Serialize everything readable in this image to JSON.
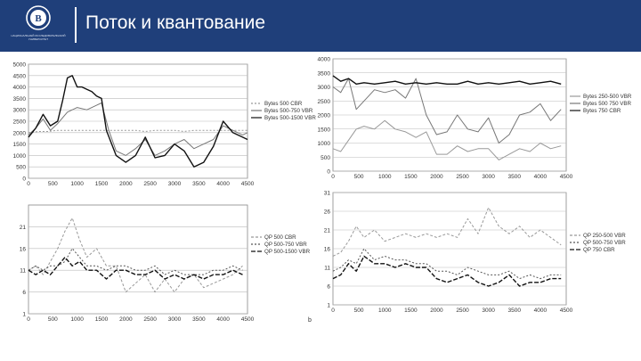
{
  "header": {
    "title": "Поток и квантование",
    "logo_caption": "НАЦИОНАЛЬНЫЙ ИССЛЕДОВАТЕЛЬСКИЙ УНИВЕРСИТЕТ",
    "logo_icon": "hse-emblem-icon",
    "bg_color": "#1f3f7a"
  },
  "chart_data": [
    {
      "type": "line",
      "panel": "top-left",
      "xlim": [
        0,
        4500
      ],
      "ylim": [
        0,
        5000
      ],
      "x_ticks": [
        0,
        500,
        1000,
        1500,
        2000,
        2500,
        3000,
        3500,
        4000,
        4500
      ],
      "y_ticks": [
        0,
        500,
        1000,
        1500,
        2000,
        2500,
        3000,
        3500,
        4000,
        4500,
        5000
      ],
      "grid": true,
      "legend_position": "right",
      "series": [
        {
          "name": "Bytes 500 CBR",
          "color": "#999999",
          "dash": "2,2",
          "x": [
            0,
            200,
            400,
            600,
            800,
            1000,
            1200,
            1400,
            1600,
            1800,
            2000,
            2200,
            2400,
            2600,
            2800,
            3000,
            3200,
            3400,
            3600,
            3800,
            4000,
            4200,
            4400,
            4500
          ],
          "y": [
            2000,
            2050,
            2050,
            2100,
            2100,
            2100,
            2100,
            2100,
            2100,
            2100,
            2100,
            2100,
            2050,
            2100,
            2100,
            2100,
            2050,
            2100,
            2100,
            2100,
            2100,
            2100,
            2100,
            2100
          ]
        },
        {
          "name": "Bytes 500-750 VBR",
          "color": "#777777",
          "dash": "",
          "x": [
            0,
            150,
            300,
            450,
            600,
            800,
            1000,
            1200,
            1400,
            1500,
            1650,
            1800,
            2000,
            2200,
            2400,
            2600,
            2800,
            3000,
            3200,
            3400,
            3600,
            3800,
            4000,
            4200,
            4400,
            4500
          ],
          "y": [
            1900,
            2200,
            2600,
            2100,
            2400,
            2900,
            3100,
            3000,
            3200,
            3300,
            2100,
            1200,
            1000,
            1300,
            1700,
            1000,
            1200,
            1500,
            1700,
            1300,
            1500,
            1700,
            2300,
            2100,
            1900,
            2000
          ]
        },
        {
          "name": "Bytes 500-1500 VBR",
          "color": "#111111",
          "dash": "",
          "x": [
            0,
            150,
            300,
            450,
            600,
            700,
            800,
            900,
            1000,
            1100,
            1200,
            1300,
            1400,
            1500,
            1600,
            1800,
            2000,
            2200,
            2400,
            2600,
            2800,
            3000,
            3200,
            3400,
            3600,
            3800,
            4000,
            4200,
            4400,
            4500
          ],
          "y": [
            1800,
            2200,
            2800,
            2300,
            2500,
            3400,
            4400,
            4500,
            4000,
            4000,
            3900,
            3800,
            3600,
            3500,
            2100,
            1000,
            700,
            1000,
            1800,
            900,
            1000,
            1500,
            1200,
            500,
            700,
            1400,
            2500,
            2000,
            1800,
            1700
          ]
        }
      ]
    },
    {
      "type": "line",
      "panel": "top-right",
      "xlim": [
        0,
        4500
      ],
      "ylim": [
        0,
        4000
      ],
      "x_ticks": [
        0,
        500,
        1000,
        1500,
        2000,
        2500,
        3000,
        3500,
        4000,
        4500
      ],
      "y_ticks": [
        0,
        500,
        1000,
        1500,
        2000,
        2500,
        3000,
        3500,
        4000
      ],
      "grid": true,
      "legend_position": "right",
      "series": [
        {
          "name": "Bytes 250-500 VBR",
          "color": "#999999",
          "dash": "",
          "x": [
            0,
            150,
            300,
            450,
            600,
            800,
            1000,
            1200,
            1400,
            1600,
            1800,
            2000,
            2200,
            2400,
            2600,
            2800,
            3000,
            3200,
            3400,
            3600,
            3800,
            4000,
            4200,
            4400
          ],
          "y": [
            800,
            700,
            1100,
            1500,
            1600,
            1500,
            1800,
            1500,
            1400,
            1200,
            1400,
            600,
            600,
            900,
            700,
            800,
            800,
            400,
            600,
            800,
            700,
            1000,
            800,
            900
          ]
        },
        {
          "name": "Bytes 500 750 VBR",
          "color": "#777777",
          "dash": "",
          "x": [
            0,
            150,
            300,
            450,
            600,
            800,
            1000,
            1200,
            1400,
            1600,
            1800,
            2000,
            2200,
            2400,
            2600,
            2800,
            3000,
            3200,
            3400,
            3600,
            3800,
            4000,
            4200,
            4400
          ],
          "y": [
            3000,
            2800,
            3300,
            2200,
            2500,
            2900,
            2800,
            2900,
            2600,
            3300,
            2000,
            1300,
            1400,
            2000,
            1500,
            1400,
            1900,
            1000,
            1300,
            2000,
            2100,
            2400,
            1800,
            2200
          ]
        },
        {
          "name": "Bytes 750 CBR",
          "color": "#111111",
          "dash": "",
          "x": [
            0,
            150,
            300,
            450,
            600,
            800,
            1000,
            1200,
            1400,
            1600,
            1800,
            2000,
            2200,
            2400,
            2600,
            2800,
            3000,
            3200,
            3400,
            3600,
            3800,
            4000,
            4200,
            4400
          ],
          "y": [
            3400,
            3200,
            3300,
            3100,
            3150,
            3100,
            3150,
            3200,
            3100,
            3150,
            3100,
            3150,
            3100,
            3100,
            3200,
            3100,
            3150,
            3100,
            3150,
            3200,
            3100,
            3150,
            3200,
            3100
          ]
        }
      ]
    },
    {
      "type": "line",
      "panel": "bottom-left",
      "xlim": [
        0,
        4500
      ],
      "ylim": [
        1,
        26
      ],
      "x_ticks": [
        0,
        500,
        1000,
        1500,
        2000,
        2500,
        3000,
        3500,
        4000,
        4500
      ],
      "y_ticks": [
        1,
        6,
        11,
        16,
        21
      ],
      "grid": true,
      "legend_position": "right",
      "series": [
        {
          "name": "QP 500 CBR",
          "color": "#999999",
          "dash": "3,2",
          "x": [
            0,
            150,
            300,
            450,
            600,
            750,
            900,
            1050,
            1200,
            1400,
            1600,
            1800,
            2000,
            2200,
            2400,
            2600,
            2800,
            3000,
            3200,
            3400,
            3600,
            3800,
            4000,
            4200,
            4400
          ],
          "y": [
            11,
            12,
            10,
            13,
            16,
            20,
            23,
            18,
            14,
            16,
            12,
            12,
            6,
            8,
            10,
            6,
            9,
            6,
            9,
            10,
            7,
            8,
            9,
            10,
            12
          ]
        },
        {
          "name": "QP 500-750 VBR",
          "color": "#555555",
          "dash": "2,2",
          "x": [
            0,
            150,
            300,
            450,
            600,
            750,
            900,
            1050,
            1200,
            1400,
            1600,
            1800,
            2000,
            2200,
            2400,
            2600,
            2800,
            3000,
            3200,
            3400,
            3600,
            3800,
            4000,
            4200,
            4400
          ],
          "y": [
            11,
            12,
            11,
            12,
            12,
            13,
            16,
            14,
            12,
            12,
            11,
            12,
            12,
            11,
            11,
            12,
            10,
            11,
            10,
            10,
            10,
            11,
            11,
            12,
            11
          ]
        },
        {
          "name": "QP 500-1500 VBR",
          "color": "#111111",
          "dash": "5,2",
          "x": [
            0,
            150,
            300,
            450,
            600,
            750,
            900,
            1050,
            1200,
            1400,
            1600,
            1800,
            2000,
            2200,
            2400,
            2600,
            2800,
            3000,
            3200,
            3400,
            3600,
            3800,
            4000,
            4200,
            4400
          ],
          "y": [
            11,
            10,
            11,
            10,
            12,
            14,
            12,
            13,
            11,
            11,
            9,
            11,
            11,
            10,
            10,
            11,
            9,
            10,
            9,
            10,
            9,
            10,
            10,
            11,
            10
          ]
        }
      ]
    },
    {
      "type": "line",
      "panel": "bottom-right",
      "xlim": [
        0,
        4500
      ],
      "ylim": [
        1,
        31
      ],
      "x_ticks": [
        0,
        500,
        1000,
        1500,
        2000,
        2500,
        3000,
        3500,
        4000,
        4500
      ],
      "y_ticks": [
        1,
        6,
        11,
        16,
        21,
        26,
        31
      ],
      "grid": true,
      "legend_position": "right",
      "series": [
        {
          "name": "QP 250-500 VBR",
          "color": "#999999",
          "dash": "3,2",
          "x": [
            0,
            150,
            300,
            450,
            600,
            800,
            1000,
            1200,
            1400,
            1600,
            1800,
            2000,
            2200,
            2400,
            2600,
            2800,
            3000,
            3200,
            3400,
            3600,
            3800,
            4000,
            4200,
            4400
          ],
          "y": [
            14,
            15,
            18,
            22,
            19,
            21,
            18,
            19,
            20,
            19,
            20,
            19,
            20,
            19,
            24,
            20,
            27,
            22,
            20,
            22,
            19,
            21,
            19,
            17
          ]
        },
        {
          "name": "QP 500-750 VBR",
          "color": "#555555",
          "dash": "2,2",
          "x": [
            0,
            150,
            300,
            450,
            600,
            800,
            1000,
            1200,
            1400,
            1600,
            1800,
            2000,
            2200,
            2400,
            2600,
            2800,
            3000,
            3200,
            3400,
            3600,
            3800,
            4000,
            4200,
            4400
          ],
          "y": [
            10,
            11,
            13,
            12,
            16,
            13,
            14,
            13,
            13,
            12,
            12,
            10,
            10,
            9,
            11,
            10,
            9,
            9,
            10,
            8,
            9,
            8,
            9,
            9
          ]
        },
        {
          "name": "QP 750 CBR",
          "color": "#111111",
          "dash": "5,2",
          "x": [
            0,
            150,
            300,
            450,
            600,
            800,
            1000,
            1200,
            1400,
            1600,
            1800,
            2000,
            2200,
            2400,
            2600,
            2800,
            3000,
            3200,
            3400,
            3600,
            3800,
            4000,
            4200,
            4400
          ],
          "y": [
            8,
            9,
            12,
            10,
            14,
            12,
            12,
            11,
            12,
            11,
            11,
            8,
            7,
            8,
            9,
            7,
            6,
            7,
            9,
            6,
            7,
            7,
            8,
            8
          ]
        }
      ]
    }
  ],
  "panel_marks": {
    "bottom_right_label": "b"
  }
}
